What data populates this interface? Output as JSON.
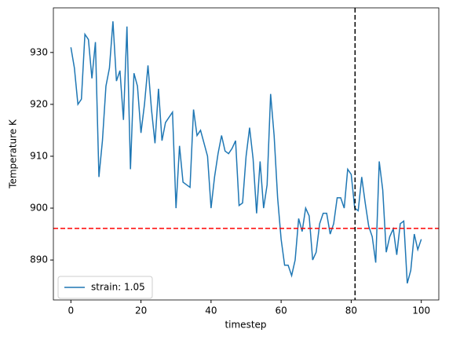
{
  "chart_data": {
    "type": "line",
    "x_label": "timestep",
    "y_label": "Temperature K",
    "x": [
      0,
      1,
      2,
      3,
      4,
      5,
      6,
      7,
      8,
      9,
      10,
      11,
      12,
      13,
      14,
      15,
      16,
      17,
      18,
      19,
      20,
      21,
      22,
      23,
      24,
      25,
      26,
      27,
      28,
      29,
      30,
      31,
      32,
      33,
      34,
      35,
      36,
      37,
      38,
      39,
      40,
      41,
      42,
      43,
      44,
      45,
      46,
      47,
      48,
      49,
      50,
      51,
      52,
      53,
      54,
      55,
      56,
      57,
      58,
      59,
      60,
      61,
      62,
      63,
      64,
      65,
      66,
      67,
      68,
      69,
      70,
      71,
      72,
      73,
      74,
      75,
      76,
      77,
      78,
      79,
      80,
      81,
      82,
      83,
      84,
      85,
      86,
      87,
      88,
      89,
      90,
      91,
      92,
      93,
      94,
      95,
      96,
      97,
      98,
      99,
      100
    ],
    "series": [
      {
        "name": "strain: 1.05",
        "color": "#1f77b4",
        "values": [
          931,
          927,
          920,
          921,
          933.5,
          932.5,
          925,
          932,
          906,
          913,
          923.5,
          927,
          936,
          924.5,
          926.5,
          917,
          935,
          907.5,
          926,
          923.5,
          914.5,
          920,
          927.5,
          919,
          912.5,
          923,
          913,
          916.5,
          917.5,
          918.5,
          900,
          912,
          905,
          904.5,
          904,
          919,
          914,
          915,
          912.5,
          910,
          900,
          906,
          910.5,
          914,
          911,
          910.5,
          911.5,
          913,
          900.5,
          901,
          910,
          915.5,
          909.5,
          899,
          909,
          900,
          904.5,
          922,
          914,
          902,
          894,
          889,
          889,
          887,
          890,
          898,
          895.5,
          900,
          898.5,
          890,
          891.5,
          897,
          899,
          899,
          895,
          897,
          902,
          902,
          900,
          907.5,
          906.5,
          900,
          899.5,
          906,
          901,
          896.5,
          894.5,
          889.5,
          909,
          903.5,
          891.5,
          894.5,
          896,
          891,
          897,
          897.5,
          885.5,
          888,
          895,
          892,
          894
        ]
      }
    ],
    "reference_lines": [
      {
        "axis": "y",
        "value": 896.1,
        "color": "#ff0000"
      },
      {
        "axis": "x",
        "value": 81.1,
        "color": "#000000"
      }
    ],
    "xlim": [
      -5,
      105
    ],
    "ylim": [
      882.3,
      938.6
    ],
    "xticks": [
      0,
      20,
      40,
      60,
      80,
      100
    ],
    "yticks": [
      890,
      900,
      910,
      920,
      930
    ],
    "legend": "lower left"
  }
}
